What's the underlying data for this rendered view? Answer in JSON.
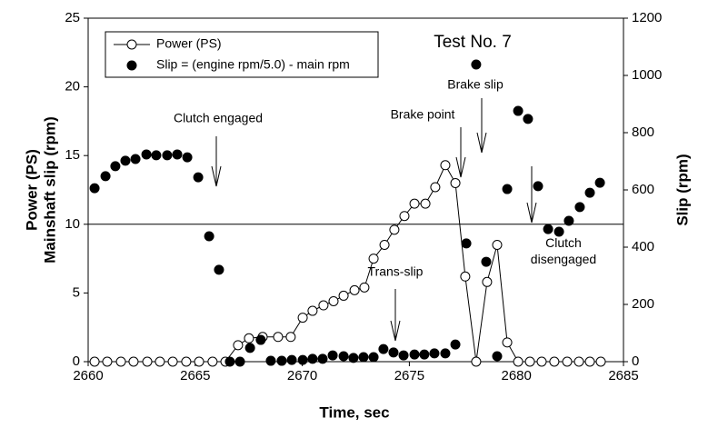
{
  "chart_data": {
    "type": "line",
    "title": "Test No. 7",
    "x_label": "Time, sec",
    "y_label": [
      "Power (PS)",
      "Mainshaft slip (rpm)"
    ],
    "y2_label": "Slip (rpm)",
    "xlim": [
      2660,
      2685
    ],
    "xticks": [
      2660,
      2665,
      2670,
      2675,
      2680,
      2685
    ],
    "ylim": [
      0,
      25
    ],
    "yticks": [
      0,
      5,
      10,
      15,
      20,
      25
    ],
    "y2lim": [
      0,
      1200
    ],
    "y2ticks": [
      0,
      200,
      400,
      600,
      800,
      1000,
      1200
    ],
    "reference_line": 10,
    "legend": "upper left",
    "series": [
      {
        "name": "Power (PS)",
        "color": "#000000",
        "marker": "open",
        "x": [
          2660.3,
          2660.89,
          2661.53,
          2662.12,
          2662.76,
          2663.35,
          2663.95,
          2664.58,
          2665.18,
          2665.81,
          2666.41,
          2667.0,
          2667.51,
          2668.15,
          2668.87,
          2669.46,
          2670.02,
          2670.48,
          2670.99,
          2671.46,
          2671.93,
          2672.44,
          2672.9,
          2673.33,
          2673.84,
          2674.3,
          2674.77,
          2675.24,
          2675.75,
          2676.21,
          2676.68,
          2677.15,
          2677.61,
          2678.12,
          2678.63,
          2679.1,
          2679.57,
          2680.08,
          2680.63,
          2681.18,
          2681.77,
          2682.37,
          2682.92,
          2683.43,
          2683.94
        ],
        "values": [
          0,
          0,
          0,
          0,
          0,
          0,
          0,
          0,
          0,
          0,
          0,
          1.2,
          1.7,
          1.8,
          1.8,
          1.8,
          3.2,
          3.7,
          4.1,
          4.4,
          4.8,
          5.2,
          5.4,
          7.5,
          8.5,
          9.6,
          10.6,
          11.5,
          11.5,
          12.7,
          14.3,
          13.0,
          6.2,
          0,
          5.8,
          8.5,
          1.4,
          0,
          0,
          0,
          0,
          0,
          0,
          0,
          0
        ]
      },
      {
        "name": "Slip = (engine rpm/5.0) - main rpm",
        "color": "#000000",
        "marker": "filled",
        "axis": "y2",
        "x": [
          2660.3,
          2660.81,
          2661.27,
          2661.74,
          2662.21,
          2662.72,
          2663.18,
          2663.69,
          2664.16,
          2664.63,
          2665.14,
          2665.65,
          2666.11,
          2666.62,
          2667.09,
          2667.56,
          2668.06,
          2668.53,
          2669.04,
          2669.51,
          2670.02,
          2670.48,
          2670.95,
          2671.42,
          2671.93,
          2672.39,
          2672.86,
          2673.33,
          2673.79,
          2674.26,
          2674.73,
          2675.24,
          2675.7,
          2676.17,
          2676.68,
          2677.15,
          2677.66,
          2678.12,
          2678.59,
          2679.1,
          2679.57,
          2680.08,
          2680.54,
          2681.01,
          2681.48,
          2681.99,
          2682.45,
          2682.96,
          2683.43,
          2683.9
        ],
        "values": [
          606,
          648,
          683,
          702,
          708,
          724,
          721,
          721,
          724,
          714,
          644,
          438,
          321,
          0,
          0,
          48,
          76,
          3,
          3,
          6,
          6,
          10,
          10,
          22,
          19,
          13,
          16,
          16,
          44,
          32,
          22,
          25,
          25,
          29,
          29,
          60,
          413,
          1038,
          349,
          19,
          603,
          876,
          848,
          613,
          463,
          454,
          492,
          540,
          590,
          625
        ]
      }
    ],
    "annotations": [
      "Clutch engaged",
      "Brake point",
      "Brake slip",
      "Clutch disengaged",
      "Trans-slip"
    ]
  }
}
